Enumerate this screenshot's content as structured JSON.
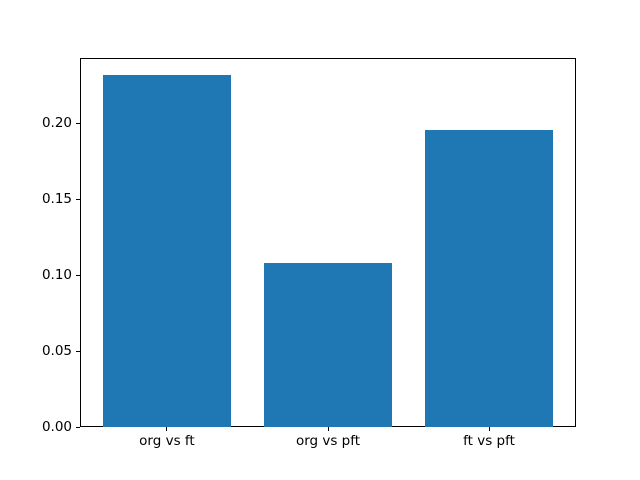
{
  "figure": {
    "background": "#ffffff",
    "spine_color": "#000000",
    "tick_color": "#000000",
    "text_color": "#000000"
  },
  "chart_data": {
    "type": "bar",
    "title": "",
    "xlabel": "",
    "ylabel": "",
    "categories": [
      "org vs ft",
      "org vs pft",
      "ft vs pft"
    ],
    "values": [
      0.232,
      0.108,
      0.196
    ],
    "bar_color": "#1f77b4",
    "bar_width_fraction": 0.8,
    "xlim": [
      -0.54,
      2.54
    ],
    "ylim": [
      0,
      0.2436
    ],
    "yticks": [
      0.0,
      0.05,
      0.1,
      0.15,
      0.2
    ],
    "ytick_labels": [
      "0.00",
      "0.05",
      "0.10",
      "0.15",
      "0.20"
    ],
    "grid": false,
    "legend": null
  }
}
